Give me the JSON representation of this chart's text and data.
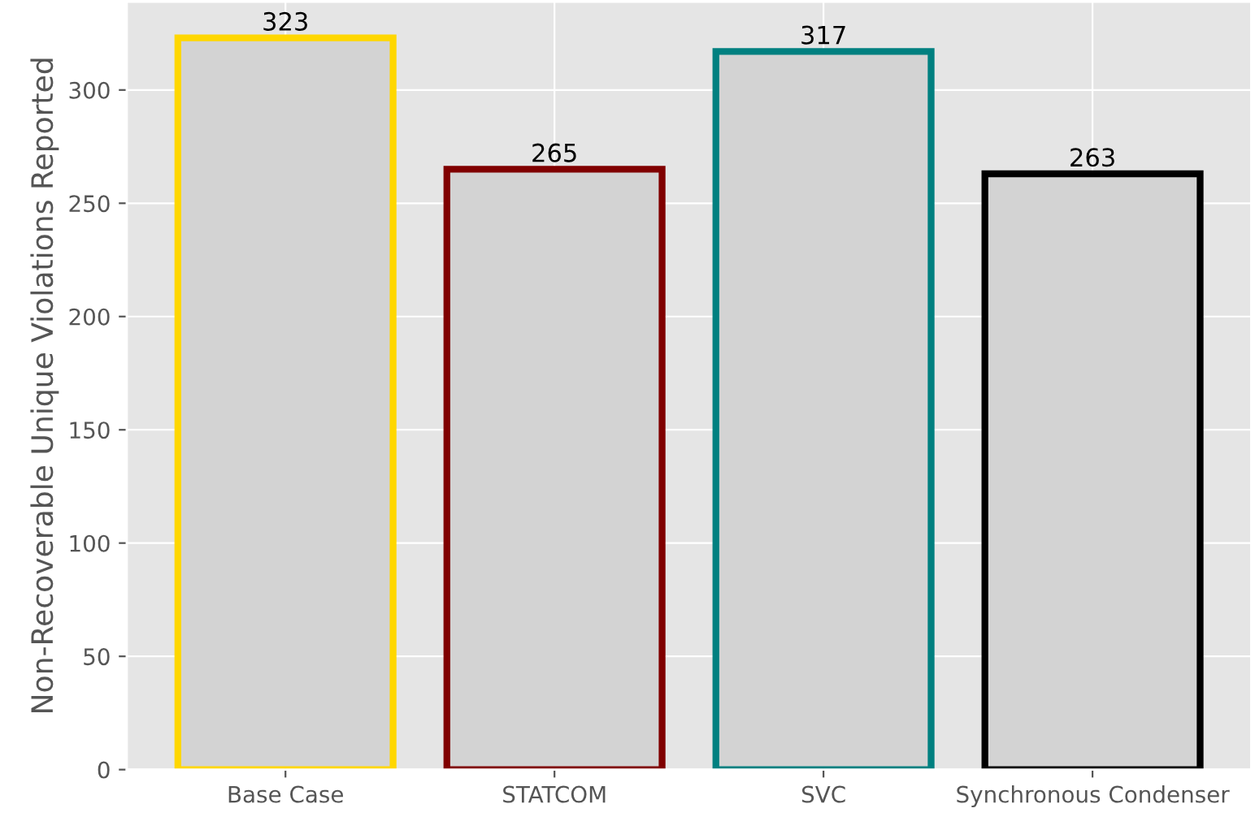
{
  "chart_data": {
    "type": "bar",
    "ylabel": "Non-Recoverable Unique Violations Reported",
    "categories": [
      "Base Case",
      "STATCOM",
      "SVC",
      "Synchronous Condenser"
    ],
    "values": [
      323,
      265,
      317,
      263
    ],
    "colors": [
      "#ffd700",
      "#800000",
      "#008080",
      "#000000"
    ],
    "ylim": [
      0,
      339
    ],
    "yticks": [
      0,
      50,
      100,
      150,
      200,
      250,
      300
    ],
    "grid": true,
    "data_labels": true
  }
}
